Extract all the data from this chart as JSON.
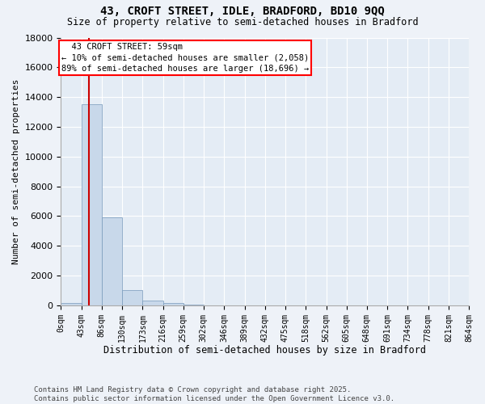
{
  "title1": "43, CROFT STREET, IDLE, BRADFORD, BD10 9QQ",
  "title2": "Size of property relative to semi-detached houses in Bradford",
  "xlabel": "Distribution of semi-detached houses by size in Bradford",
  "ylabel": "Number of semi-detached properties",
  "annotation_line1": "  43 CROFT STREET: 59sqm  ",
  "annotation_line2": "← 10% of semi-detached houses are smaller (2,058)",
  "annotation_line3": "89% of semi-detached houses are larger (18,696) →",
  "bin_edges": [
    0,
    43,
    86,
    130,
    173,
    216,
    259,
    302,
    346,
    389,
    432,
    475,
    518,
    562,
    605,
    648,
    691,
    734,
    778,
    821,
    864
  ],
  "bin_labels": [
    "0sqm",
    "43sqm",
    "86sqm",
    "130sqm",
    "173sqm",
    "216sqm",
    "259sqm",
    "302sqm",
    "346sqm",
    "389sqm",
    "432sqm",
    "475sqm",
    "518sqm",
    "562sqm",
    "605sqm",
    "648sqm",
    "691sqm",
    "734sqm",
    "778sqm",
    "821sqm",
    "864sqm"
  ],
  "bar_counts": [
    150,
    13500,
    5900,
    1000,
    300,
    150,
    50,
    0,
    0,
    0,
    0,
    0,
    0,
    0,
    0,
    0,
    0,
    0,
    0,
    0
  ],
  "bar_color": "#c8d8ea",
  "bar_edgecolor": "#7799bb",
  "vline_color": "#cc0000",
  "vline_x": 59,
  "ylim_max": 18000,
  "yticks": [
    0,
    2000,
    4000,
    6000,
    8000,
    10000,
    12000,
    14000,
    16000,
    18000
  ],
  "footnote1": "Contains HM Land Registry data © Crown copyright and database right 2025.",
  "footnote2": "Contains public sector information licensed under the Open Government Licence v3.0.",
  "fig_bg": "#eef2f8",
  "plot_bg": "#e4ecf5"
}
